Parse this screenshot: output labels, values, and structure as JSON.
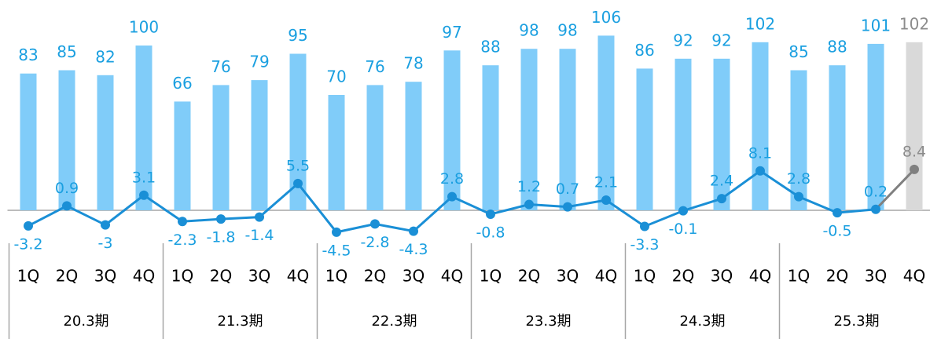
{
  "chart_data": {
    "type": "bar-line",
    "categories": [
      "1Q",
      "2Q",
      "3Q",
      "4Q",
      "1Q",
      "2Q",
      "3Q",
      "4Q",
      "1Q",
      "2Q",
      "3Q",
      "4Q",
      "1Q",
      "2Q",
      "3Q",
      "4Q",
      "1Q",
      "2Q",
      "3Q",
      "4Q",
      "1Q",
      "2Q",
      "3Q",
      "4Q"
    ],
    "groups": [
      "20.3期",
      "21.3期",
      "22.3期",
      "23.3期",
      "24.3期",
      "25.3期"
    ],
    "series": [
      {
        "type": "bar",
        "color": "#80ccf9",
        "label_color": "#1a9fe0",
        "last_color": "#d9d9d9",
        "last_label_color": "#8c8c8c",
        "values": [
          83,
          85,
          82,
          100,
          66,
          76,
          79,
          95,
          70,
          76,
          78,
          97,
          88,
          98,
          98,
          106,
          86,
          92,
          92,
          102,
          85,
          88,
          101,
          102
        ]
      },
      {
        "type": "line",
        "axis": "y2",
        "color": "#1a8fd6",
        "label_color": "#1a9fe0",
        "last_color": "#808080",
        "last_label_color": "#8c8c8c",
        "values": [
          -3.2,
          0.9,
          -3.0,
          3.1,
          -2.3,
          -1.8,
          -1.4,
          5.5,
          -4.5,
          -2.8,
          -4.3,
          2.8,
          -0.8,
          1.2,
          0.7,
          2.1,
          -3.3,
          -0.1,
          2.4,
          8.1,
          2.8,
          -0.5,
          0.2,
          8.4
        ]
      }
    ],
    "ylim": [
      0,
      120
    ],
    "y2lim": [
      -5,
      10
    ]
  }
}
